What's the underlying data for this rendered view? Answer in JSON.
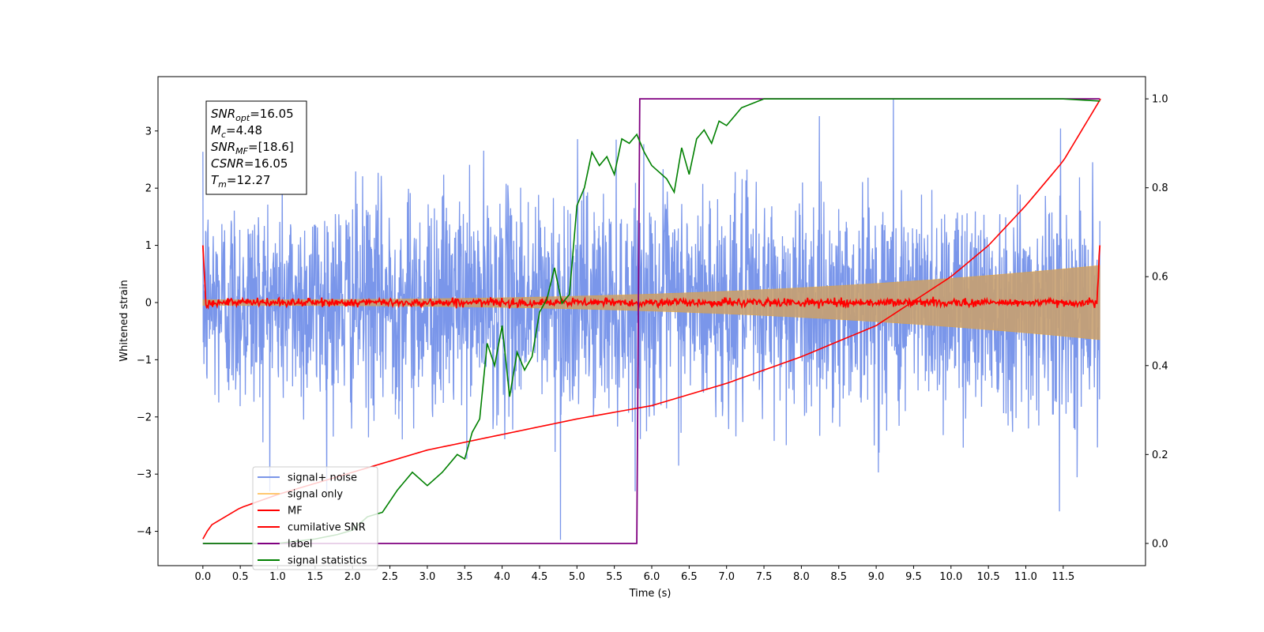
{
  "chart_data": {
    "type": "line",
    "xlabel": "Time (s)",
    "ylabel": "Whitened strain",
    "xlim": [
      -0.6,
      12.6
    ],
    "ylim": [
      -4.6,
      3.95
    ],
    "y2lim": [
      -0.05,
      1.05
    ],
    "xticks": [
      0.0,
      0.5,
      1.0,
      1.5,
      2.0,
      2.5,
      3.0,
      3.5,
      4.0,
      4.5,
      5.0,
      5.5,
      6.0,
      6.5,
      7.0,
      7.5,
      8.0,
      8.5,
      9.0,
      9.5,
      10.0,
      10.5,
      11.0,
      11.5
    ],
    "xtick_labels": [
      "0.0",
      "0.5",
      "1.0",
      "1.5",
      "2.0",
      "2.5",
      "3.0",
      "3.5",
      "4.0",
      "4.5",
      "5.0",
      "5.5",
      "6.0",
      "6.5",
      "7.0",
      "7.5",
      "8.0",
      "8.5",
      "9.0",
      "9.5",
      "10.0",
      "10.5",
      "11.0",
      "11.5"
    ],
    "yticks": [
      -4,
      -3,
      -2,
      -1,
      0,
      1,
      2,
      3
    ],
    "ytick_labels": [
      "−4",
      "−3",
      "−2",
      "−1",
      "0",
      "1",
      "2",
      "3"
    ],
    "y2ticks": [
      0.0,
      0.2,
      0.4,
      0.6,
      0.8,
      1.0
    ],
    "y2tick_labels": [
      "0.0",
      "0.2",
      "0.4",
      "0.6",
      "0.8",
      "1.0"
    ],
    "grid": false,
    "legend_placement": "lower-left",
    "stats_box": [
      {
        "main": "SNR",
        "sub": "opt",
        "rest": "=16.05"
      },
      {
        "main": "M",
        "sub": "c",
        "rest": "=4.48"
      },
      {
        "main": "SNR",
        "sub": "MF",
        "rest": "=[18.6]"
      },
      {
        "main": "CSNR",
        "sub": "",
        "rest": "=16.05"
      },
      {
        "main": "T",
        "sub": "m",
        "rest": "=12.27"
      }
    ],
    "series": [
      {
        "name": "signal+ noise",
        "color": "#4169e1",
        "axis": "left",
        "style": "noisy band",
        "t_range": [
          0.0,
          11.99
        ],
        "approx_amplitude": 2.4,
        "peaks": [
          [
            4.78,
            -4.15
          ],
          [
            9.23,
            3.55
          ],
          [
            11.45,
            -3.65
          ]
        ]
      },
      {
        "name": "signal only",
        "color": "#ffa500",
        "axis": "left",
        "style": "chirp envelope",
        "t_range": [
          0.0,
          11.99
        ],
        "envelope_start": 0.05,
        "envelope_end": 0.65
      },
      {
        "name": "MF",
        "color": "#ff0000",
        "axis": "left",
        "style": "noise around zero",
        "t_range": [
          0.0,
          11.99
        ],
        "edge_value": 1.0,
        "approx_amplitude": 0.08
      },
      {
        "name": "cumilative SNR",
        "color": "#ff0000",
        "axis": "right",
        "t": [
          0.0,
          0.1,
          0.5,
          1.0,
          2.0,
          3.0,
          4.0,
          5.0,
          6.0,
          7.0,
          8.0,
          9.0,
          10.0,
          10.5,
          11.0,
          11.5,
          12.0
        ],
        "values": [
          0.01,
          0.04,
          0.08,
          0.11,
          0.16,
          0.21,
          0.245,
          0.28,
          0.31,
          0.36,
          0.42,
          0.49,
          0.6,
          0.67,
          0.76,
          0.86,
          1.0
        ]
      },
      {
        "name": "label",
        "color": "#800080",
        "axis": "right",
        "t": [
          0.0,
          5.8,
          5.84,
          11.99
        ],
        "values": [
          0.0,
          0.0,
          1.0,
          1.0
        ]
      },
      {
        "name": "signal statistics",
        "color": "#008000",
        "axis": "right",
        "t": [
          0.0,
          1.0,
          1.5,
          1.8,
          2.0,
          2.2,
          2.4,
          2.6,
          2.8,
          3.0,
          3.2,
          3.4,
          3.5,
          3.6,
          3.7,
          3.8,
          3.9,
          4.0,
          4.1,
          4.2,
          4.3,
          4.4,
          4.5,
          4.6,
          4.7,
          4.8,
          4.9,
          5.0,
          5.1,
          5.2,
          5.3,
          5.4,
          5.5,
          5.6,
          5.7,
          5.8,
          5.9,
          6.0,
          6.2,
          6.3,
          6.4,
          6.5,
          6.6,
          6.7,
          6.8,
          6.9,
          7.0,
          7.2,
          7.5,
          8.0,
          9.0,
          10.0,
          11.0,
          11.5,
          11.99
        ],
        "values": [
          0.0,
          0.0,
          0.01,
          0.02,
          0.03,
          0.06,
          0.07,
          0.12,
          0.16,
          0.13,
          0.16,
          0.2,
          0.19,
          0.25,
          0.28,
          0.45,
          0.4,
          0.49,
          0.33,
          0.43,
          0.39,
          0.42,
          0.52,
          0.55,
          0.62,
          0.54,
          0.56,
          0.76,
          0.8,
          0.88,
          0.85,
          0.87,
          0.83,
          0.91,
          0.9,
          0.92,
          0.88,
          0.85,
          0.82,
          0.79,
          0.89,
          0.83,
          0.91,
          0.93,
          0.9,
          0.95,
          0.94,
          0.98,
          1.0,
          1.0,
          1.0,
          1.0,
          1.0,
          1.0,
          0.995
        ]
      }
    ]
  }
}
